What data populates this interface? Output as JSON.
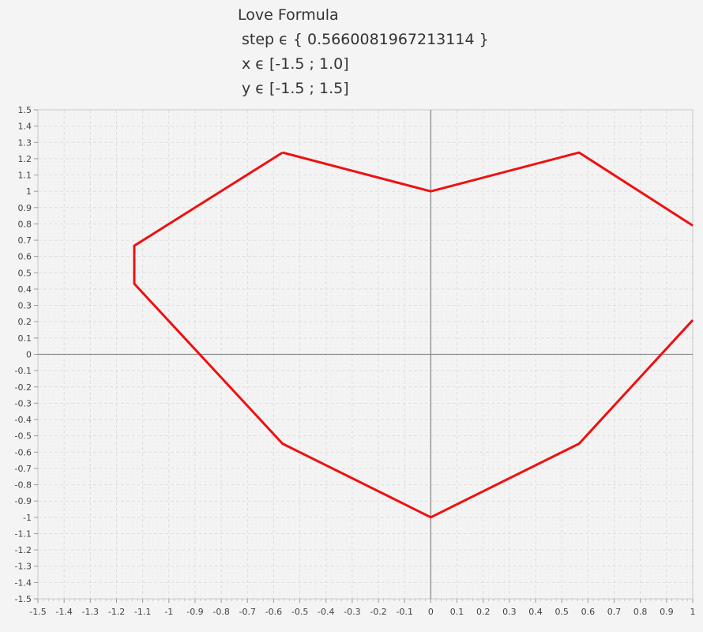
{
  "header": {
    "title": "Love Formula",
    "step_line": "step ϵ { 0.5660081967213114 }",
    "x_line": "x ϵ [-1.5 ; 1.0]",
    "y_line": "y ϵ [-1.5 ; 1.5]"
  },
  "colors": {
    "background": "#f4f4f4",
    "series": "#ee1111",
    "axis": "#8a8a8a",
    "grid": "#dddddd",
    "plot_border": "#c8c8c8"
  },
  "chart_data": {
    "type": "line",
    "title": "",
    "xlabel": "",
    "ylabel": "",
    "xlim": [
      -1.5,
      1.0
    ],
    "ylim": [
      -1.5,
      1.5
    ],
    "grid": true,
    "legend": "none",
    "xticks": [
      "-1.5",
      "-1.4",
      "-1.3",
      "-1.2",
      "-1.1",
      "-1",
      "-0.9",
      "-0.8",
      "-0.7",
      "-0.6",
      "-0.5",
      "-0.4",
      "-0.3",
      "-0.2",
      "-0.1",
      "0",
      "0.1",
      "0.2",
      "0.3",
      "0.4",
      "0.5",
      "0.6",
      "0.7",
      "0.8",
      "0.9",
      "1"
    ],
    "yticks": [
      "1.5",
      "1.4",
      "1.3",
      "1.2",
      "1.1",
      "1",
      "0.9",
      "0.8",
      "0.7",
      "0.6",
      "0.5",
      "0.4",
      "0.3",
      "0.2",
      "0.1",
      "0",
      "-0.1",
      "-0.2",
      "-0.3",
      "-0.4",
      "-0.5",
      "-0.6",
      "-0.7",
      "-0.8",
      "-0.9",
      "-1",
      "-1.1",
      "-1.2",
      "-1.3",
      "-1.4",
      "-1.5"
    ],
    "series": [
      {
        "x": [
          -0.566,
          -1.132,
          -1.132,
          -0.566,
          0,
          0.566,
          1.0
        ],
        "y": [
          1.238,
          0.666,
          0.433,
          -0.548,
          -1.0,
          -0.548,
          0.21
        ]
      },
      {
        "x": [
          0,
          0.566,
          1.0
        ],
        "y": [
          1.0,
          1.238,
          0.79
        ]
      },
      {
        "x": [
          -0.566,
          0
        ],
        "y": [
          1.238,
          1.0
        ]
      }
    ]
  }
}
